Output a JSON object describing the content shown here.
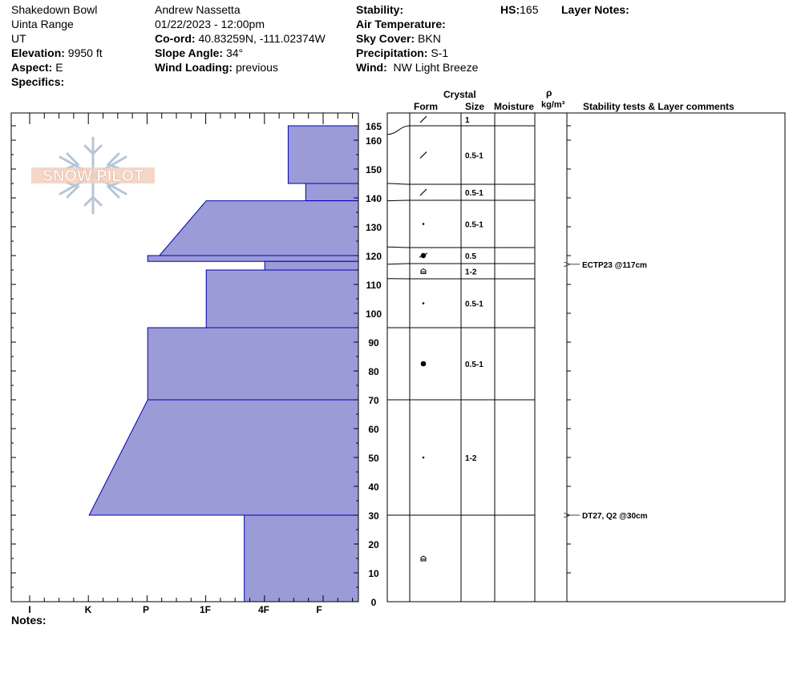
{
  "header": {
    "location": "Shakedown Bowl",
    "range": "Uinta Range",
    "state": "UT",
    "elevation_label": "Elevation:",
    "elevation": "9950 ft",
    "aspect_label": "Aspect:",
    "aspect": "E",
    "specifics_label": "Specifics:",
    "observer": "Andrew Nassetta",
    "datetime": "01/22/2023 - 12:00pm",
    "coord_label": "Co-ord:",
    "coord": "40.83259N, -111.02374W",
    "slope_label": "Slope Angle:",
    "slope": "34°",
    "wind_loading_label": "Wind Loading:",
    "wind_loading": "previous",
    "stability_label": "Stability:",
    "air_temp_label": "Air Temperature:",
    "sky_label": "Sky Cover:",
    "sky": "BKN",
    "precip_label": "Precipitation:",
    "precip": "S-1",
    "wind_label": "Wind:",
    "wind": "NW Light Breeze",
    "hs_label": "HS:",
    "hs": "165",
    "layer_notes_label": "Layer Notes:",
    "notes_label": "Notes:"
  },
  "watermark": {
    "text": "SNOW PILOT"
  },
  "columns": {
    "crystal": "Crystal",
    "form": "Form",
    "size": "Size",
    "moisture": "Moisture",
    "rho": "ρ",
    "density_unit": "kg/m³",
    "stability_comments": "Stability tests & Layer comments"
  },
  "colors": {
    "hardness_fill": "#9b9bd7",
    "hardness_stroke": "#0000b4"
  },
  "chart_data": {
    "type": "snow_profile",
    "height_axis": {
      "min": 0,
      "max": 170,
      "ticks": [
        0,
        10,
        20,
        30,
        40,
        50,
        60,
        70,
        80,
        90,
        100,
        110,
        120,
        130,
        140,
        150,
        160,
        165
      ]
    },
    "hardness_axis": {
      "categories": [
        "I",
        "K",
        "P",
        "1F",
        "4F",
        "F"
      ]
    },
    "hardness_profile": [
      {
        "bottom": 145,
        "top": 165,
        "hardness_bottom": 1.2,
        "hardness_top": 1.2
      },
      {
        "bottom": 139,
        "top": 145,
        "hardness_bottom": 0.9,
        "hardness_top": 0.9
      },
      {
        "bottom": 120,
        "top": 139,
        "hardness_bottom": 3.4,
        "hardness_top": 2.6
      },
      {
        "bottom": 118,
        "top": 120,
        "hardness_bottom": 3.6,
        "hardness_top": 3.6
      },
      {
        "bottom": 115,
        "top": 118,
        "hardness_bottom": 1.6,
        "hardness_top": 1.6
      },
      {
        "bottom": 95,
        "top": 115,
        "hardness_bottom": 2.6,
        "hardness_top": 2.6
      },
      {
        "bottom": 70,
        "top": 95,
        "hardness_bottom": 3.6,
        "hardness_top": 3.6
      },
      {
        "bottom": 30,
        "top": 70,
        "hardness_bottom": 4.6,
        "hardness_top": 3.6
      },
      {
        "bottom": 0,
        "top": 30,
        "hardness_bottom": 1.95,
        "hardness_top": 1.95
      }
    ],
    "layers": [
      {
        "top": 165,
        "bottom": 162,
        "form": "decomposing",
        "size": "1"
      },
      {
        "top": 162,
        "bottom": 145,
        "form": "decomposing",
        "size": "0.5-1"
      },
      {
        "top": 145,
        "bottom": 139,
        "form": "decomposing",
        "size": "0.5-1"
      },
      {
        "top": 139,
        "bottom": 123,
        "form": "rounded-small",
        "size": "0.5-1"
      },
      {
        "top": 123,
        "bottom": 117,
        "form": "melt-freeze",
        "size": "0.5"
      },
      {
        "top": 117,
        "bottom": 112,
        "form": "depth-hoar",
        "size": "1-2"
      },
      {
        "top": 112,
        "bottom": 95,
        "form": "rounded-small",
        "size": "0.5-1"
      },
      {
        "top": 95,
        "bottom": 70,
        "form": "melt-form",
        "size": "0.5-1"
      },
      {
        "top": 70,
        "bottom": 30,
        "form": "rounded-small",
        "size": "1-2"
      },
      {
        "top": 30,
        "bottom": 0,
        "form": "depth-hoar",
        "size": ""
      }
    ],
    "stability_tests": [
      {
        "height": 117,
        "label": "ECTP23 @117cm"
      },
      {
        "height": 30,
        "label": "DT27, Q2 @30cm"
      }
    ]
  }
}
